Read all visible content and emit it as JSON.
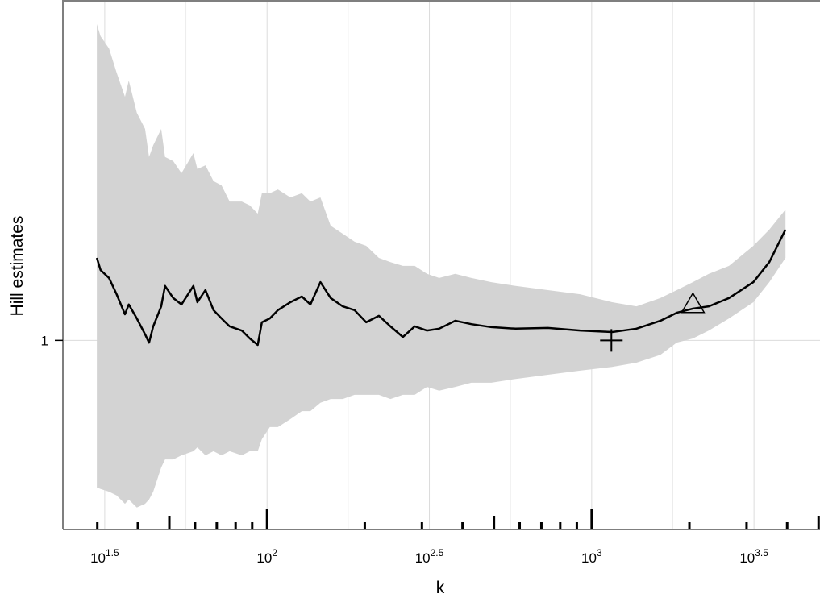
{
  "chart_data": {
    "type": "line",
    "xlabel": "k",
    "ylabel": "Hill estimates",
    "xlog": true,
    "xlim": [
      23.5,
      5050
    ],
    "ylim": [
      0.5,
      1.9
    ],
    "xticks": [
      {
        "value": 31.62,
        "label": "10^1.5"
      },
      {
        "value": 100,
        "label": "10^2"
      },
      {
        "value": 316.2,
        "label": "10^2.5"
      },
      {
        "value": 1000,
        "label": "10^3"
      },
      {
        "value": 3162,
        "label": "10^3.5"
      }
    ],
    "yticks": [
      1
    ],
    "axis_ticks": [
      30,
      40,
      50,
      60,
      70,
      80,
      90,
      100,
      200,
      300,
      400,
      500,
      600,
      700,
      800,
      900,
      1000,
      2000,
      3000,
      4000,
      5000
    ],
    "grid": true,
    "color": "#000000",
    "x": [
      29.9,
      30.7,
      32.6,
      34.4,
      36.5,
      37.5,
      39.7,
      42.1,
      43.3,
      44.6,
      47.2,
      48.5,
      51.4,
      54.5,
      59.3,
      61.0,
      64.6,
      68.4,
      72.4,
      76.7,
      83.6,
      88.5,
      93.6,
      96.4,
      102,
      108,
      118,
      128,
      136,
      146,
      157,
      171,
      186,
      202,
      221,
      240,
      262,
      285,
      311,
      339,
      380,
      426,
      491,
      583,
      733,
      921,
      1156,
      1374,
      1629,
      1828,
      2049,
      2296,
      2649,
      3148,
      3525,
      3954
    ],
    "values": [
      1.218,
      1.186,
      1.165,
      1.122,
      1.069,
      1.095,
      1.058,
      1.016,
      0.994,
      1.037,
      1.09,
      1.144,
      1.112,
      1.095,
      1.144,
      1.101,
      1.133,
      1.08,
      1.058,
      1.037,
      1.026,
      1.005,
      0.988,
      1.048,
      1.058,
      1.08,
      1.101,
      1.116,
      1.095,
      1.154,
      1.112,
      1.09,
      1.08,
      1.048,
      1.065,
      1.037,
      1.009,
      1.037,
      1.026,
      1.031,
      1.052,
      1.043,
      1.035,
      1.031,
      1.033,
      1.026,
      1.022,
      1.031,
      1.052,
      1.073,
      1.084,
      1.09,
      1.112,
      1.154,
      1.207,
      1.293
    ],
    "band": {
      "color": "#d3d3d3",
      "upper": [
        1.836,
        1.804,
        1.772,
        1.708,
        1.644,
        1.687,
        1.602,
        1.559,
        1.485,
        1.516,
        1.559,
        1.485,
        1.474,
        1.442,
        1.495,
        1.453,
        1.463,
        1.421,
        1.41,
        1.367,
        1.367,
        1.357,
        1.335,
        1.389,
        1.389,
        1.399,
        1.378,
        1.389,
        1.367,
        1.378,
        1.303,
        1.282,
        1.261,
        1.25,
        1.218,
        1.207,
        1.197,
        1.197,
        1.176,
        1.165,
        1.176,
        1.165,
        1.154,
        1.144,
        1.133,
        1.122,
        1.101,
        1.09,
        1.112,
        1.133,
        1.154,
        1.176,
        1.197,
        1.25,
        1.293,
        1.346
      ],
      "lower": [
        0.611,
        0.607,
        0.6,
        0.59,
        0.568,
        0.579,
        0.558,
        0.568,
        0.579,
        0.6,
        0.664,
        0.685,
        0.685,
        0.696,
        0.707,
        0.717,
        0.696,
        0.707,
        0.696,
        0.707,
        0.696,
        0.707,
        0.707,
        0.739,
        0.771,
        0.771,
        0.792,
        0.813,
        0.813,
        0.835,
        0.845,
        0.845,
        0.856,
        0.856,
        0.856,
        0.845,
        0.856,
        0.856,
        0.877,
        0.867,
        0.877,
        0.888,
        0.888,
        0.898,
        0.909,
        0.92,
        0.93,
        0.941,
        0.962,
        0.994,
        1.005,
        1.026,
        1.058,
        1.101,
        1.154,
        1.218
      ]
    },
    "points": [
      {
        "x": 1150,
        "y": 1.0,
        "shape": "plus"
      },
      {
        "x": 2050,
        "y": 1.095,
        "shape": "triangle"
      }
    ]
  }
}
